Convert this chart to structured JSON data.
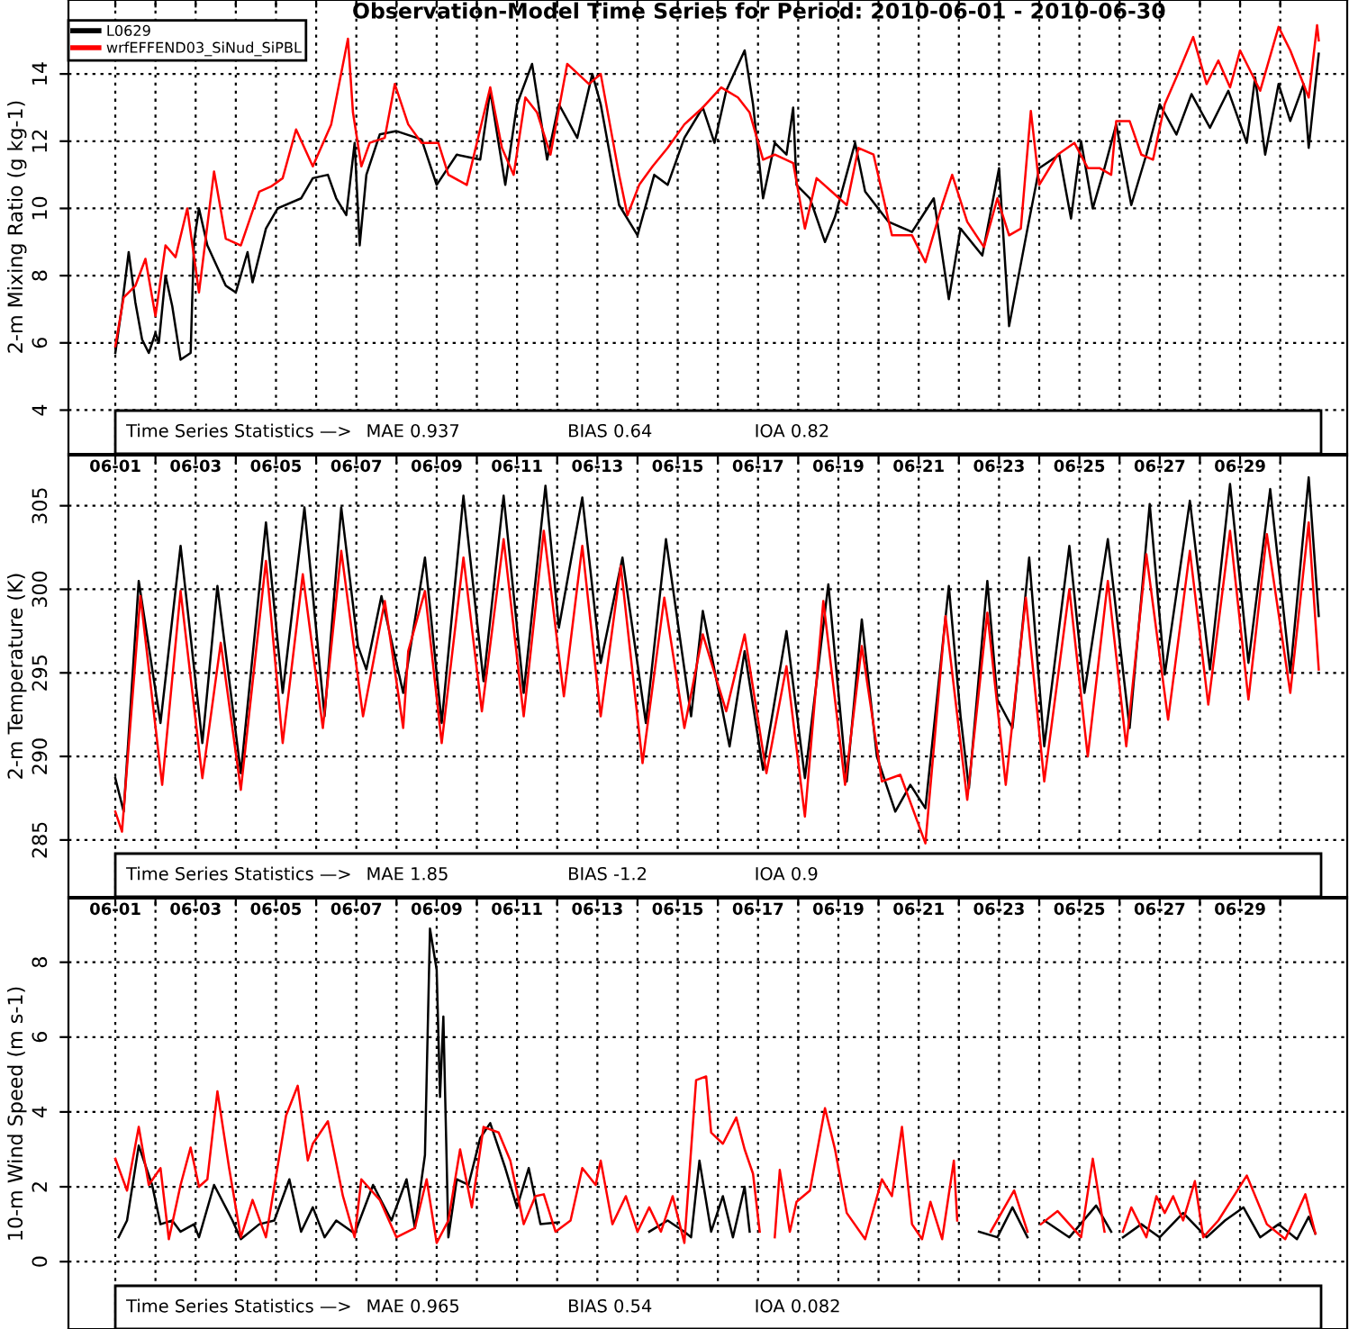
{
  "chart_data": [
    {
      "type": "line",
      "title": "Observation-Model Time Series for Period: 2010-06-01 - 2010-06-30",
      "ylabel": "2-m Mixing Ratio (g kg-1)",
      "xlim": [
        "2010-05-30T20:00",
        "2010-07-01T16:00"
      ],
      "ylim": [
        2.7,
        16.2
      ],
      "yticks": [
        4,
        6,
        8,
        10,
        12,
        14
      ],
      "xticks": [
        {
          "value": "2010-06-01",
          "label": null
        },
        {
          "value": "2010-06-02",
          "label": null
        },
        {
          "value": "2010-06-03",
          "label": null
        },
        {
          "value": "2010-06-04",
          "label": null
        },
        {
          "value": "2010-06-05",
          "label": null
        },
        {
          "value": "2010-06-06",
          "label": null
        },
        {
          "value": "2010-06-07",
          "label": null
        },
        {
          "value": "2010-06-08",
          "label": null
        },
        {
          "value": "2010-06-09",
          "label": null
        },
        {
          "value": "2010-06-10",
          "label": null
        },
        {
          "value": "2010-06-11",
          "label": null
        },
        {
          "value": "2010-06-12",
          "label": null
        },
        {
          "value": "2010-06-13",
          "label": null
        },
        {
          "value": "2010-06-14",
          "label": null
        },
        {
          "value": "2010-06-15",
          "label": null
        },
        {
          "value": "2010-06-16",
          "label": null
        },
        {
          "value": "2010-06-17",
          "label": null
        },
        {
          "value": "2010-06-18",
          "label": null
        },
        {
          "value": "2010-06-19",
          "label": null
        },
        {
          "value": "2010-06-20",
          "label": null
        },
        {
          "value": "2010-06-21",
          "label": null
        },
        {
          "value": "2010-06-22",
          "label": null
        },
        {
          "value": "2010-06-23",
          "label": null
        },
        {
          "value": "2010-06-24",
          "label": null
        },
        {
          "value": "2010-06-25",
          "label": null
        },
        {
          "value": "2010-06-26",
          "label": null
        },
        {
          "value": "2010-06-27",
          "label": null
        },
        {
          "value": "2010-06-28",
          "label": null
        },
        {
          "value": "2010-06-29",
          "label": null
        },
        {
          "value": "2010-06-30",
          "label": null
        }
      ],
      "tick_labels": "y",
      "grid": true,
      "legend": "top left",
      "line_style": "solid",
      "marker": "none",
      "annotations": [
        "Time Series Statistics —>",
        "MAE 0.937",
        "BIAS 0.64",
        "IOA 0.82"
      ],
      "series": [
        {
          "name": "L0629",
          "color": "#000000",
          "x": [
            "2010-06-01T00:00",
            "2010-06-01T04:00",
            "2010-06-01T08:00",
            "2010-06-01T12:00",
            "2010-06-01T16:00",
            "2010-06-01T20:00",
            "2010-06-02T00:00",
            "2010-06-02T02:00",
            "2010-06-02T06:00",
            "2010-06-02T10:00",
            "2010-06-02T15:00",
            "2010-06-02T21:00",
            "2010-06-02T23:00",
            "2010-06-03T02:00",
            "2010-06-03T07:00",
            "2010-06-03T18:00",
            "2010-06-04T00:00",
            "2010-06-04T07:00",
            "2010-06-04T10:00",
            "2010-06-04T18:00",
            "2010-06-05T01:00",
            "2010-06-05T15:00",
            "2010-06-05T22:00",
            "2010-06-06T07:00",
            "2010-06-06T12:00",
            "2010-06-06T18:00",
            "2010-06-06T23:00",
            "2010-06-07T02:00",
            "2010-06-07T06:00",
            "2010-06-07T14:00",
            "2010-06-08T00:00",
            "2010-06-08T15:00",
            "2010-06-09T00:00",
            "2010-06-09T12:00",
            "2010-06-10T02:00",
            "2010-06-10T08:00",
            "2010-06-10T17:00",
            "2010-06-11T00:00",
            "2010-06-11T09:00",
            "2010-06-11T18:00",
            "2010-06-12T01:00",
            "2010-06-12T12:00",
            "2010-06-12T21:00",
            "2010-06-13T02:00",
            "2010-06-13T13:00",
            "2010-06-14T00:00",
            "2010-06-14T10:00",
            "2010-06-14T18:00",
            "2010-06-15T04:00",
            "2010-06-15T15:00",
            "2010-06-15T22:00",
            "2010-06-16T05:00",
            "2010-06-16T16:00",
            "2010-06-16T21:00",
            "2010-06-17T03:00",
            "2010-06-17T10:00",
            "2010-06-17T17:00",
            "2010-06-17T21:00",
            "2010-06-17T23:00",
            "2010-06-18T07:00",
            "2010-06-18T16:00",
            "2010-06-18T22:00",
            "2010-06-19T10:00",
            "2010-06-19T16:00",
            "2010-06-20T06:00",
            "2010-06-20T20:00",
            "2010-06-21T09:00",
            "2010-06-21T18:00",
            "2010-06-22T01:00",
            "2010-06-22T14:00",
            "2010-06-23T00:00",
            "2010-06-23T06:00",
            "2010-06-23T17:00",
            "2010-06-24T00:00",
            "2010-06-24T12:00",
            "2010-06-24T19:00",
            "2010-06-25T01:00",
            "2010-06-25T08:00",
            "2010-06-25T15:00",
            "2010-06-25T22:00",
            "2010-06-26T07:00",
            "2010-06-26T16:00",
            "2010-06-27T00:00",
            "2010-06-27T10:00",
            "2010-06-27T19:00",
            "2010-06-28T06:00",
            "2010-06-28T17:00",
            "2010-06-29T04:00",
            "2010-06-29T09:00",
            "2010-06-29T15:00",
            "2010-06-29T23:00",
            "2010-06-30T06:00",
            "2010-06-30T14:00",
            "2010-06-30T17:00",
            "2010-06-30T23:00"
          ],
          "values": [
            5.7,
            7.1,
            8.7,
            7.2,
            6.1,
            5.7,
            6.3,
            6.0,
            8.0,
            7.1,
            5.5,
            5.7,
            9.0,
            10.0,
            8.9,
            7.7,
            7.5,
            8.7,
            7.8,
            9.4,
            10.0,
            10.3,
            10.9,
            11.0,
            10.3,
            9.8,
            11.95,
            8.9,
            11.0,
            12.2,
            12.3,
            12.05,
            10.7,
            11.6,
            11.45,
            13.5,
            10.7,
            13.1,
            14.3,
            11.45,
            13.1,
            12.1,
            14.0,
            13.1,
            10.1,
            9.2,
            11.0,
            10.7,
            12.1,
            13.0,
            11.95,
            13.5,
            14.7,
            13.1,
            10.3,
            11.95,
            11.6,
            13.0,
            10.7,
            10.3,
            9.0,
            9.75,
            11.95,
            10.5,
            9.6,
            9.3,
            10.3,
            7.3,
            9.4,
            8.6,
            11.2,
            6.5,
            9.4,
            11.2,
            11.6,
            9.7,
            12.0,
            10.0,
            11.2,
            12.5,
            10.1,
            11.6,
            13.1,
            12.2,
            13.4,
            12.4,
            13.5,
            11.95,
            13.9,
            11.6,
            13.7,
            12.6,
            13.7,
            11.8,
            14.6
          ]
        },
        {
          "name": "wrfEFFEND03_SiNud_SiPBL",
          "color": "#ff0000",
          "x": [
            "2010-06-01T00:00",
            "2010-06-01T05:00",
            "2010-06-01T12:00",
            "2010-06-01T18:00",
            "2010-06-02T00:00",
            "2010-06-02T06:00",
            "2010-06-02T12:00",
            "2010-06-02T19:00",
            "2010-06-03T02:00",
            "2010-06-03T11:00",
            "2010-06-03T18:00",
            "2010-06-04T03:00",
            "2010-06-04T14:00",
            "2010-06-04T21:00",
            "2010-06-05T04:00",
            "2010-06-05T12:00",
            "2010-06-05T22:00",
            "2010-06-06T09:00",
            "2010-06-06T19:00",
            "2010-06-06T22:00",
            "2010-06-07T03:00",
            "2010-06-07T08:00",
            "2010-06-07T17:00",
            "2010-06-07T23:00",
            "2010-06-08T07:00",
            "2010-06-08T15:00",
            "2010-06-09T01:00",
            "2010-06-09T07:00",
            "2010-06-09T18:00",
            "2010-06-10T08:00",
            "2010-06-10T15:00",
            "2010-06-10T22:00",
            "2010-06-11T05:00",
            "2010-06-11T12:00",
            "2010-06-11T20:00",
            "2010-06-12T06:00",
            "2010-06-12T19:00",
            "2010-06-13T02:00",
            "2010-06-13T13:00",
            "2010-06-13T18:00",
            "2010-06-14T01:00",
            "2010-06-14T09:00",
            "2010-06-14T18:00",
            "2010-06-15T04:00",
            "2010-06-15T15:00",
            "2010-06-16T02:00",
            "2010-06-16T12:00",
            "2010-06-16T19:00",
            "2010-06-17T03:00",
            "2010-06-17T10:00",
            "2010-06-17T21:00",
            "2010-06-18T04:00",
            "2010-06-18T11:00",
            "2010-06-18T20:00",
            "2010-06-19T05:00",
            "2010-06-19T12:00",
            "2010-06-19T21:00",
            "2010-06-20T08:00",
            "2010-06-20T20:00",
            "2010-06-21T04:00",
            "2010-06-21T14:00",
            "2010-06-21T20:00",
            "2010-06-22T05:00",
            "2010-06-22T15:00",
            "2010-06-22T23:00",
            "2010-06-23T06:00",
            "2010-06-23T13:00",
            "2010-06-23T19:00",
            "2010-06-24T00:00",
            "2010-06-24T11:00",
            "2010-06-24T21:00",
            "2010-06-25T05:00",
            "2010-06-25T12:00",
            "2010-06-25T19:00",
            "2010-06-25T22:00",
            "2010-06-26T06:00",
            "2010-06-26T13:00",
            "2010-06-26T20:00",
            "2010-06-27T03:00",
            "2010-06-27T10:00",
            "2010-06-27T20:00",
            "2010-06-28T04:00",
            "2010-06-28T11:00",
            "2010-06-28T18:00",
            "2010-06-29T00:00",
            "2010-06-29T12:00",
            "2010-06-29T23:00",
            "2010-06-30T06:00",
            "2010-06-30T17:00",
            "2010-06-30T22:00",
            "2010-06-30T23:00"
          ],
          "values": [
            5.9,
            7.35,
            7.7,
            8.5,
            6.8,
            8.9,
            8.55,
            10.0,
            7.5,
            11.1,
            9.1,
            8.9,
            10.5,
            10.65,
            10.9,
            12.35,
            11.25,
            12.5,
            15.05,
            12.85,
            11.25,
            11.95,
            12.1,
            13.7,
            12.5,
            11.95,
            11.95,
            11.0,
            10.7,
            13.6,
            11.8,
            11.0,
            13.3,
            12.85,
            11.6,
            14.3,
            13.7,
            14.0,
            11.0,
            9.8,
            10.7,
            11.25,
            11.8,
            12.5,
            13.0,
            13.6,
            13.3,
            12.85,
            11.45,
            11.6,
            11.35,
            9.4,
            10.9,
            10.5,
            10.1,
            11.8,
            11.6,
            9.2,
            9.2,
            8.4,
            10.1,
            11.0,
            9.6,
            8.85,
            10.3,
            9.2,
            9.4,
            12.9,
            10.7,
            11.6,
            11.95,
            11.2,
            11.2,
            11.0,
            12.6,
            12.6,
            11.6,
            11.45,
            13.1,
            13.9,
            15.1,
            13.7,
            14.4,
            13.6,
            14.7,
            13.5,
            15.4,
            14.7,
            13.3,
            15.45,
            15.0
          ]
        }
      ]
    },
    {
      "type": "line",
      "ylabel": "2-m Temperature (K)",
      "xlim": [
        "2010-05-30T20:00",
        "2010-07-01T16:00"
      ],
      "ylim": [
        281.6,
        308.0
      ],
      "yticks": [
        285,
        290,
        295,
        300,
        305
      ],
      "xticks": [
        {
          "value": "2010-06-01",
          "label": "06-01"
        },
        {
          "value": "2010-06-02",
          "label": null
        },
        {
          "value": "2010-06-03",
          "label": "06-03"
        },
        {
          "value": "2010-06-04",
          "label": null
        },
        {
          "value": "2010-06-05",
          "label": "06-05"
        },
        {
          "value": "2010-06-06",
          "label": null
        },
        {
          "value": "2010-06-07",
          "label": "06-07"
        },
        {
          "value": "2010-06-08",
          "label": null
        },
        {
          "value": "2010-06-09",
          "label": "06-09"
        },
        {
          "value": "2010-06-10",
          "label": null
        },
        {
          "value": "2010-06-11",
          "label": "06-11"
        },
        {
          "value": "2010-06-12",
          "label": null
        },
        {
          "value": "2010-06-13",
          "label": "06-13"
        },
        {
          "value": "2010-06-14",
          "label": null
        },
        {
          "value": "2010-06-15",
          "label": "06-15"
        },
        {
          "value": "2010-06-16",
          "label": null
        },
        {
          "value": "2010-06-17",
          "label": "06-17"
        },
        {
          "value": "2010-06-18",
          "label": null
        },
        {
          "value": "2010-06-19",
          "label": "06-19"
        },
        {
          "value": "2010-06-20",
          "label": null
        },
        {
          "value": "2010-06-21",
          "label": "06-21"
        },
        {
          "value": "2010-06-22",
          "label": null
        },
        {
          "value": "2010-06-23",
          "label": "06-23"
        },
        {
          "value": "2010-06-24",
          "label": null
        },
        {
          "value": "2010-06-25",
          "label": "06-25"
        },
        {
          "value": "2010-06-26",
          "label": null
        },
        {
          "value": "2010-06-27",
          "label": "06-27"
        },
        {
          "value": "2010-06-28",
          "label": null
        },
        {
          "value": "2010-06-29",
          "label": "06-29"
        },
        {
          "value": "2010-06-30",
          "label": null
        }
      ],
      "grid": true,
      "line_style": "solid",
      "marker": "none",
      "annotations": [
        "Time Series Statistics —>",
        "MAE 1.85",
        "BIAS -1.2",
        "IOA 0.9"
      ],
      "series": [
        {
          "color": "#000000",
          "x": [
            "2010-06-01T00:00",
            "2010-06-01T05:00",
            "2010-06-01T14:00",
            "2010-06-02T03:00",
            "2010-06-02T15:00",
            "2010-06-03T04:00",
            "2010-06-03T13:00",
            "2010-06-04T03:00",
            "2010-06-04T18:00",
            "2010-06-05T04:00",
            "2010-06-05T17:00",
            "2010-06-06T05:00",
            "2010-06-06T15:00",
            "2010-06-07T01:00",
            "2010-06-07T06:00",
            "2010-06-07T15:00",
            "2010-06-08T04:00",
            "2010-06-08T17:00",
            "2010-06-09T03:00",
            "2010-06-09T16:00",
            "2010-06-10T04:00",
            "2010-06-10T16:00",
            "2010-06-11T04:00",
            "2010-06-11T17:00",
            "2010-06-12T01:00",
            "2010-06-12T15:00",
            "2010-06-13T02:00",
            "2010-06-13T15:00",
            "2010-06-14T05:00",
            "2010-06-14T17:00",
            "2010-06-15T08:00",
            "2010-06-15T15:00",
            "2010-06-16T07:00",
            "2010-06-16T16:00",
            "2010-06-17T03:00",
            "2010-06-17T17:00",
            "2010-06-18T04:00",
            "2010-06-18T18:00",
            "2010-06-19T05:00",
            "2010-06-19T14:00",
            "2010-06-19T23:00",
            "2010-06-20T10:00",
            "2010-06-20T19:00",
            "2010-06-21T04:00",
            "2010-06-21T18:00",
            "2010-06-22T01:00",
            "2010-06-22T06:00",
            "2010-06-22T17:00",
            "2010-06-22T23:00",
            "2010-06-23T08:00",
            "2010-06-23T18:00",
            "2010-06-24T03:00",
            "2010-06-24T18:00",
            "2010-06-25T03:00",
            "2010-06-25T17:00",
            "2010-06-26T06:00",
            "2010-06-26T18:00",
            "2010-06-27T03:00",
            "2010-06-27T18:00",
            "2010-06-28T06:00",
            "2010-06-28T18:00",
            "2010-06-29T05:00",
            "2010-06-29T18:00",
            "2010-06-30T06:00",
            "2010-06-30T17:00",
            "2010-06-30T23:00"
          ],
          "values": [
            288.7,
            286.7,
            300.5,
            292.0,
            302.6,
            290.8,
            300.2,
            289.0,
            304.0,
            293.8,
            304.9,
            292.4,
            304.9,
            296.6,
            295.2,
            299.6,
            293.8,
            301.9,
            292.0,
            305.6,
            294.5,
            305.6,
            293.8,
            306.2,
            297.7,
            305.5,
            295.6,
            301.9,
            292.0,
            303.0,
            292.4,
            298.7,
            290.6,
            296.3,
            289.2,
            297.5,
            288.7,
            300.3,
            288.5,
            298.2,
            290.0,
            286.7,
            288.3,
            286.9,
            300.2,
            292.4,
            288.1,
            300.5,
            293.4,
            291.7,
            301.9,
            290.6,
            302.6,
            293.8,
            303.0,
            291.7,
            305.1,
            294.9,
            305.3,
            295.2,
            306.3,
            295.6,
            306.0,
            295.0,
            306.7,
            298.4
          ]
        },
        {
          "color": "#ff0000",
          "x": [
            "2010-06-01T00:00",
            "2010-06-01T04:00",
            "2010-06-01T15:00",
            "2010-06-02T04:00",
            "2010-06-02T15:00",
            "2010-06-03T04:00",
            "2010-06-03T15:00",
            "2010-06-04T03:00",
            "2010-06-04T18:00",
            "2010-06-05T04:00",
            "2010-06-05T16:00",
            "2010-06-06T04:00",
            "2010-06-06T15:00",
            "2010-06-07T04:00",
            "2010-06-07T17:00",
            "2010-06-08T04:00",
            "2010-06-08T07:00",
            "2010-06-08T17:00",
            "2010-06-09T03:00",
            "2010-06-09T16:00",
            "2010-06-10T03:00",
            "2010-06-10T16:00",
            "2010-06-11T04:00",
            "2010-06-11T16:00",
            "2010-06-12T04:00",
            "2010-06-12T15:00",
            "2010-06-13T02:00",
            "2010-06-13T14:00",
            "2010-06-14T03:00",
            "2010-06-14T16:00",
            "2010-06-15T04:00",
            "2010-06-15T15:00",
            "2010-06-16T05:00",
            "2010-06-16T16:00",
            "2010-06-17T05:00",
            "2010-06-17T17:00",
            "2010-06-18T04:00",
            "2010-06-18T15:00",
            "2010-06-19T04:00",
            "2010-06-19T14:00",
            "2010-06-20T02:00",
            "2010-06-20T13:00",
            "2010-06-21T04:00",
            "2010-06-21T16:00",
            "2010-06-22T05:00",
            "2010-06-22T17:00",
            "2010-06-23T04:00",
            "2010-06-23T16:00",
            "2010-06-24T03:00",
            "2010-06-24T18:00",
            "2010-06-25T05:00",
            "2010-06-25T17:00",
            "2010-06-26T04:00",
            "2010-06-26T16:00",
            "2010-06-27T05:00",
            "2010-06-27T18:00",
            "2010-06-28T05:00",
            "2010-06-28T18:00",
            "2010-06-29T05:00",
            "2010-06-29T16:00",
            "2010-06-30T06:00",
            "2010-06-30T17:00",
            "2010-06-30T23:00"
          ],
          "values": [
            286.7,
            285.5,
            299.6,
            288.3,
            299.9,
            288.7,
            296.8,
            288.0,
            301.7,
            290.8,
            300.9,
            291.7,
            302.3,
            292.4,
            299.3,
            291.7,
            296.3,
            299.9,
            290.8,
            301.9,
            292.7,
            303.0,
            292.4,
            303.5,
            293.6,
            302.6,
            292.4,
            301.4,
            289.6,
            299.5,
            291.7,
            297.3,
            292.7,
            297.3,
            289.0,
            295.4,
            286.4,
            299.3,
            288.3,
            296.6,
            288.5,
            288.9,
            284.8,
            298.4,
            287.4,
            298.6,
            288.3,
            299.5,
            288.5,
            300.0,
            290.0,
            300.5,
            290.6,
            302.1,
            292.2,
            302.3,
            293.1,
            303.5,
            293.4,
            303.3,
            293.8,
            304.0,
            295.2
          ]
        }
      ]
    },
    {
      "type": "line",
      "ylabel": "10-m Wind Speed (m s-1)",
      "xlim": [
        "2010-05-30T20:00",
        "2010-07-01T16:00"
      ],
      "ylim": [
        -1.8,
        9.7
      ],
      "yticks": [
        0,
        2,
        4,
        6,
        8
      ],
      "xticks": [
        {
          "value": "2010-06-01",
          "label": "06-01"
        },
        {
          "value": "2010-06-02",
          "label": null
        },
        {
          "value": "2010-06-03",
          "label": "06-03"
        },
        {
          "value": "2010-06-04",
          "label": null
        },
        {
          "value": "2010-06-05",
          "label": "06-05"
        },
        {
          "value": "2010-06-06",
          "label": null
        },
        {
          "value": "2010-06-07",
          "label": "06-07"
        },
        {
          "value": "2010-06-08",
          "label": null
        },
        {
          "value": "2010-06-09",
          "label": "06-09"
        },
        {
          "value": "2010-06-10",
          "label": null
        },
        {
          "value": "2010-06-11",
          "label": "06-11"
        },
        {
          "value": "2010-06-12",
          "label": null
        },
        {
          "value": "2010-06-13",
          "label": "06-13"
        },
        {
          "value": "2010-06-14",
          "label": null
        },
        {
          "value": "2010-06-15",
          "label": "06-15"
        },
        {
          "value": "2010-06-16",
          "label": null
        },
        {
          "value": "2010-06-17",
          "label": "06-17"
        },
        {
          "value": "2010-06-18",
          "label": null
        },
        {
          "value": "2010-06-19",
          "label": "06-19"
        },
        {
          "value": "2010-06-20",
          "label": null
        },
        {
          "value": "2010-06-21",
          "label": "06-21"
        },
        {
          "value": "2010-06-22",
          "label": null
        },
        {
          "value": "2010-06-23",
          "label": "06-23"
        },
        {
          "value": "2010-06-24",
          "label": null
        },
        {
          "value": "2010-06-25",
          "label": "06-25"
        },
        {
          "value": "2010-06-26",
          "label": null
        },
        {
          "value": "2010-06-27",
          "label": "06-27"
        },
        {
          "value": "2010-06-28",
          "label": null
        },
        {
          "value": "2010-06-29",
          "label": "06-29"
        },
        {
          "value": "2010-06-30",
          "label": null
        }
      ],
      "grid": true,
      "line_style": "solid",
      "marker": "none",
      "annotations": [
        "Time Series Statistics —>",
        "MAE 0.965",
        "BIAS 0.54",
        "IOA 0.082"
      ],
      "series": [
        {
          "color": "#000000",
          "x": [
            "2010-06-01T02:00",
            "2010-06-01T07:00",
            "2010-06-01T14:00",
            "2010-06-01T22:00",
            "2010-06-02T03:00",
            "2010-06-02T10:00",
            "2010-06-02T15:00",
            "2010-06-02T23:00",
            "2010-06-03T02:00",
            "2010-06-03T11:00",
            "2010-06-03T22:00",
            "2010-06-04T03:00",
            "2010-06-04T14:00",
            "2010-06-04T23:00",
            "2010-06-05T08:00",
            "2010-06-05T15:00",
            "2010-06-05T22:00",
            "2010-06-06T05:00",
            "2010-06-06T12:00",
            "2010-06-06T23:00",
            "2010-06-07T10:00",
            "2010-06-07T21:00",
            "2010-06-08T06:00",
            "2010-06-08T11:00",
            "2010-06-08T17:00",
            "2010-06-08T20:00",
            "2010-06-09T00:00",
            "2010-06-09T02:00",
            "2010-06-09T04:00",
            "2010-06-09T07:00",
            "2010-06-09T12:00",
            "2010-06-09T19:00",
            "2010-06-10T02:00",
            "2010-06-10T08:00",
            "2010-06-10T17:00",
            "2010-06-11T00:00",
            "2010-06-11T07:00",
            "2010-06-11T14:00",
            "2010-06-12T01:00",
            "2010-06-13T00:00",
            "2010-06-14T07:00",
            "2010-06-14T18:00",
            "2010-06-15T04:00",
            "2010-06-15T08:00",
            "2010-06-15T13:00",
            "2010-06-15T20:00",
            "2010-06-16T03:00",
            "2010-06-16T09:00",
            "2010-06-16T16:00",
            "2010-06-16T19:00",
            "2010-06-20T00:00",
            "2010-06-22T12:00",
            "2010-06-22T23:00",
            "2010-06-23T08:00",
            "2010-06-23T17:00",
            "2010-06-23T22:00",
            "2010-06-24T03:00",
            "2010-06-24T18:00",
            "2010-06-25T10:00",
            "2010-06-25T19:00",
            "2010-06-25T23:00",
            "2010-06-26T02:00",
            "2010-06-26T13:00",
            "2010-06-27T00:00",
            "2010-06-27T14:00",
            "2010-06-28T04:00",
            "2010-06-28T15:00",
            "2010-06-29T02:00",
            "2010-06-29T12:00",
            "2010-06-29T23:00",
            "2010-06-30T10:00",
            "2010-06-30T17:00",
            "2010-06-30T21:00"
          ],
          "values": [
            0.65,
            1.1,
            3.1,
            2.05,
            1.0,
            1.1,
            0.8,
            1.0,
            0.65,
            2.05,
            1.1,
            0.6,
            1.0,
            1.1,
            2.2,
            0.8,
            1.45,
            0.65,
            1.1,
            0.75,
            2.05,
            1.1,
            2.2,
            0.9,
            2.85,
            8.9,
            7.8,
            4.4,
            6.55,
            0.65,
            2.2,
            2.05,
            3.3,
            3.7,
            2.5,
            1.45,
            2.5,
            1.0,
            1.05,
            null,
            0.8,
            1.1,
            0.8,
            0.65,
            2.7,
            0.8,
            1.75,
            0.65,
            2.0,
            0.8,
            null,
            0.8,
            0.65,
            1.45,
            0.65,
            null,
            1.1,
            0.65,
            1.5,
            0.8,
            null,
            0.65,
            1.0,
            0.65,
            1.3,
            0.65,
            1.1,
            1.45,
            0.65,
            1.0,
            0.6,
            1.2,
            0.75
          ]
        },
        {
          "color": "#ff0000",
          "x": [
            "2010-06-01T00:00",
            "2010-06-01T07:00",
            "2010-06-01T14:00",
            "2010-06-01T20:00",
            "2010-06-02T03:00",
            "2010-06-02T08:00",
            "2010-06-02T15:00",
            "2010-06-02T21:00",
            "2010-06-03T02:00",
            "2010-06-03T07:00",
            "2010-06-03T13:00",
            "2010-06-03T20:00",
            "2010-06-04T03:00",
            "2010-06-04T10:00",
            "2010-06-04T18:00",
            "2010-06-05T06:00",
            "2010-06-05T13:00",
            "2010-06-05T19:00",
            "2010-06-05T22:00",
            "2010-06-06T07:00",
            "2010-06-06T16:00",
            "2010-06-06T23:00",
            "2010-06-07T03:00",
            "2010-06-07T14:00",
            "2010-06-08T00:00",
            "2010-06-08T11:00",
            "2010-06-08T18:00",
            "2010-06-09T00:00",
            "2010-06-09T07:00",
            "2010-06-09T14:00",
            "2010-06-09T21:00",
            "2010-06-10T04:00",
            "2010-06-10T13:00",
            "2010-06-10T20:00",
            "2010-06-11T04:00",
            "2010-06-11T11:00",
            "2010-06-11T16:00",
            "2010-06-11T23:00",
            "2010-06-12T08:00",
            "2010-06-12T15:00",
            "2010-06-12T23:00",
            "2010-06-13T02:00",
            "2010-06-13T09:00",
            "2010-06-13T17:00",
            "2010-06-14T00:00",
            "2010-06-14T07:00",
            "2010-06-14T14:00",
            "2010-06-14T21:00",
            "2010-06-15T04:00",
            "2010-06-15T11:00",
            "2010-06-15T17:00",
            "2010-06-15T20:00",
            "2010-06-16T03:00",
            "2010-06-16T11:00",
            "2010-06-16T16:00",
            "2010-06-16T21:00",
            "2010-06-17T01:00",
            "2010-06-17T05:00",
            "2010-06-17T10:00",
            "2010-06-17T13:00",
            "2010-06-17T19:00",
            "2010-06-17T23:00",
            "2010-06-18T07:00",
            "2010-06-18T16:00",
            "2010-06-18T22:00",
            "2010-06-19T05:00",
            "2010-06-19T16:00",
            "2010-06-20T02:00",
            "2010-06-20T08:00",
            "2010-06-20T14:00",
            "2010-06-20T20:00",
            "2010-06-21T02:00",
            "2010-06-21T07:00",
            "2010-06-21T14:00",
            "2010-06-21T21:00",
            "2010-06-21T23:00",
            "2010-06-22T05:00",
            "2010-06-22T19:00",
            "2010-06-23T09:00",
            "2010-06-23T17:00",
            "2010-06-23T20:00",
            "2010-06-24T01:00",
            "2010-06-24T11:00",
            "2010-06-25T01:00",
            "2010-06-25T08:00",
            "2010-06-25T15:00",
            "2010-06-25T20:00",
            "2010-06-26T02:00",
            "2010-06-26T07:00",
            "2010-06-26T16:00",
            "2010-06-26T22:00",
            "2010-06-27T03:00",
            "2010-06-27T08:00",
            "2010-06-27T14:00",
            "2010-06-27T21:00",
            "2010-06-28T02:00",
            "2010-06-28T11:00",
            "2010-06-29T04:00",
            "2010-06-29T16:00",
            "2010-06-30T03:00",
            "2010-06-30T15:00",
            "2010-06-30T21:00"
          ],
          "values": [
            2.75,
            1.9,
            3.6,
            2.05,
            2.5,
            0.6,
            2.05,
            3.05,
            2.0,
            2.2,
            4.55,
            2.5,
            0.65,
            1.65,
            0.65,
            3.9,
            4.7,
            2.7,
            3.15,
            3.75,
            1.75,
            0.65,
            2.2,
            1.65,
            0.65,
            0.9,
            2.2,
            0.5,
            1.1,
            3.0,
            1.45,
            3.6,
            3.45,
            2.7,
            1.0,
            1.75,
            1.8,
            0.8,
            1.1,
            2.5,
            2.05,
            2.7,
            1.0,
            1.75,
            0.8,
            1.45,
            0.8,
            1.75,
            0.5,
            4.85,
            4.95,
            3.45,
            3.15,
            3.85,
            3.0,
            2.35,
            0.8,
            null,
            0.65,
            2.45,
            0.8,
            1.6,
            1.9,
            4.1,
            3.0,
            1.3,
            0.6,
            2.2,
            1.75,
            3.6,
            1.0,
            0.6,
            1.6,
            0.6,
            2.7,
            1.1,
            null,
            0.8,
            1.9,
            0.8,
            null,
            1.0,
            1.35,
            0.65,
            2.75,
            0.8,
            null,
            0.8,
            1.45,
            0.65,
            1.75,
            1.3,
            1.75,
            1.1,
            2.15,
            0.65,
            1.1,
            2.3,
            1.0,
            0.6,
            1.8,
            0.75
          ]
        }
      ]
    }
  ]
}
